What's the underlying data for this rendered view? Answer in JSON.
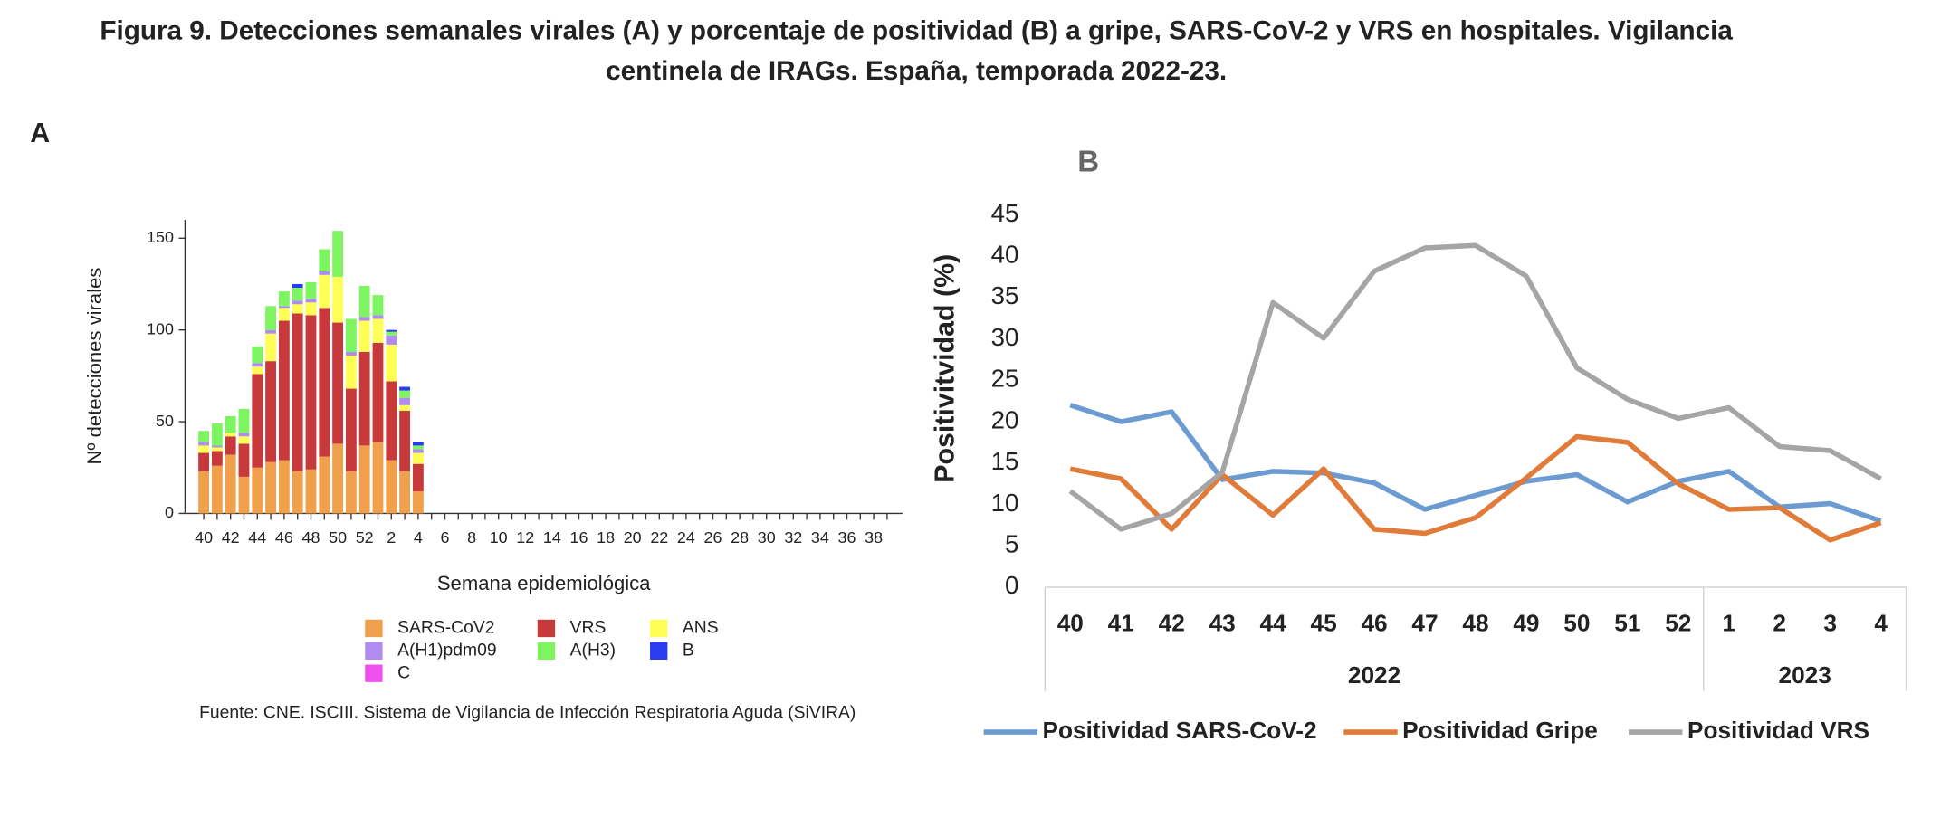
{
  "header": {
    "title_lines": [
      "Figura 9. Detecciones semanales virales (A) y porcentaje de positividad (B) a gripe, SARS-CoV-2 y VRS en hospitales. Vigilancia",
      "centinela de IRAGs.  España, temporada 2022-23."
    ]
  },
  "chart_data": [
    {
      "type": "stacked_bar",
      "panel": "A",
      "ylabel": "Nº detecciones virales",
      "xlabel": "Semana epidemiológica",
      "source": "Fuente: CNE. ISCIII. Sistema de Vigilancia de Infección Respiratoria Aguda (SiVIRA)",
      "categories": [
        "40",
        null,
        "42",
        null,
        "44",
        null,
        "46",
        null,
        "48",
        null,
        "50",
        null,
        "52",
        null,
        "2",
        null,
        "4",
        null,
        "6",
        null,
        "8",
        null,
        "10",
        null,
        "12",
        null,
        "14",
        null,
        "16",
        null,
        "18",
        null,
        "20",
        null,
        "22",
        null,
        "24",
        null,
        "26",
        null,
        "28",
        null,
        "30",
        null,
        "32",
        null,
        "34",
        null,
        "36",
        null,
        "38",
        null
      ],
      "ylim": [
        0,
        160
      ],
      "yticks": [
        0,
        50,
        100,
        150
      ],
      "series": [
        {
          "name": "SARS-CoV2",
          "color": "#f0a04b",
          "values": [
            23,
            26,
            32,
            20,
            25,
            28,
            29,
            23,
            24,
            31,
            38,
            23,
            37,
            39,
            29,
            23,
            12,
            null,
            null,
            null,
            null,
            null,
            null,
            null,
            null,
            null,
            null,
            null,
            null,
            null,
            null,
            null,
            null,
            null,
            null,
            null,
            null,
            null,
            null,
            null,
            null,
            null,
            null,
            null,
            null,
            null,
            null,
            null,
            null,
            null,
            null,
            null
          ]
        },
        {
          "name": "VRS",
          "color": "#c8393b",
          "values": [
            10,
            8,
            10,
            18,
            51,
            55,
            76,
            86,
            84,
            81,
            66,
            45,
            51,
            54,
            43,
            33,
            15,
            null,
            null,
            null,
            null,
            null,
            null,
            null,
            null,
            null,
            null,
            null,
            null,
            null,
            null,
            null,
            null,
            null,
            null,
            null,
            null,
            null,
            null,
            null,
            null,
            null,
            null,
            null,
            null,
            null,
            null,
            null,
            null,
            null,
            null,
            null
          ]
        },
        {
          "name": "ANS",
          "color": "#ffff55",
          "values": [
            4,
            2,
            2,
            4,
            4,
            15,
            7,
            5,
            7,
            18,
            25,
            18,
            17,
            13,
            20,
            3,
            6,
            null,
            null,
            null,
            null,
            null,
            null,
            null,
            null,
            null,
            null,
            null,
            null,
            null,
            null,
            null,
            null,
            null,
            null,
            null,
            null,
            null,
            null,
            null,
            null,
            null,
            null,
            null,
            null,
            null,
            null,
            null,
            null,
            null,
            null,
            null
          ]
        },
        {
          "name": "A(H1)pdm09",
          "color": "#b08cf0",
          "values": [
            2,
            1,
            0,
            2,
            2,
            2,
            1,
            2,
            2,
            2,
            0,
            2,
            2,
            2,
            5,
            4,
            2,
            null,
            null,
            null,
            null,
            null,
            null,
            null,
            null,
            null,
            null,
            null,
            null,
            null,
            null,
            null,
            null,
            null,
            null,
            null,
            null,
            null,
            null,
            null,
            null,
            null,
            null,
            null,
            null,
            null,
            null,
            null,
            null,
            null,
            null,
            null
          ]
        },
        {
          "name": "A(H3)",
          "color": "#7cf560",
          "values": [
            6,
            12,
            9,
            13,
            9,
            13,
            8,
            7,
            9,
            12,
            25,
            18,
            17,
            11,
            2,
            4,
            2,
            null,
            null,
            null,
            null,
            null,
            null,
            null,
            null,
            null,
            null,
            null,
            null,
            null,
            null,
            null,
            null,
            null,
            null,
            null,
            null,
            null,
            null,
            null,
            null,
            null,
            null,
            null,
            null,
            null,
            null,
            null,
            null,
            null,
            null,
            null
          ]
        },
        {
          "name": "B",
          "color": "#2b3cf0",
          "values": [
            0,
            0,
            0,
            0,
            0,
            0,
            0,
            2,
            0,
            0,
            0,
            0,
            0,
            0,
            1,
            2,
            2,
            null,
            null,
            null,
            null,
            null,
            null,
            null,
            null,
            null,
            null,
            null,
            null,
            null,
            null,
            null,
            null,
            null,
            null,
            null,
            null,
            null,
            null,
            null,
            null,
            null,
            null,
            null,
            null,
            null,
            null,
            null,
            null,
            null,
            null,
            null
          ]
        },
        {
          "name": "C",
          "color": "#f050f0",
          "values": [
            0,
            0,
            0,
            0,
            0,
            0,
            0,
            0,
            0,
            0,
            0,
            0,
            0,
            0,
            0,
            0,
            0,
            null,
            null,
            null,
            null,
            null,
            null,
            null,
            null,
            null,
            null,
            null,
            null,
            null,
            null,
            null,
            null,
            null,
            null,
            null,
            null,
            null,
            null,
            null,
            null,
            null,
            null,
            null,
            null,
            null,
            null,
            null,
            null,
            null,
            null,
            null
          ]
        }
      ]
    },
    {
      "type": "line",
      "panel": "B",
      "ylabel": "Positivitvidad (%)",
      "categories": [
        "40",
        "41",
        "42",
        "43",
        "44",
        "45",
        "46",
        "47",
        "48",
        "49",
        "50",
        "51",
        "52",
        "1",
        "2",
        "3",
        "4"
      ],
      "groups": [
        {
          "label": "2022",
          "span": 13
        },
        {
          "label": "2023",
          "span": 4
        }
      ],
      "ylim": [
        0,
        45
      ],
      "yticks": [
        0,
        5,
        10,
        15,
        20,
        25,
        30,
        35,
        40,
        45
      ],
      "series": [
        {
          "name": "Positividad SARS-CoV-2",
          "color": "#6b9bd1",
          "values": [
            22,
            20,
            21.2,
            13,
            14,
            13.8,
            12.6,
            9.4,
            11.1,
            12.8,
            13.6,
            10.3,
            12.8,
            14,
            9.7,
            10.1,
            8
          ]
        },
        {
          "name": "Positividad Gripe",
          "color": "#e07b39",
          "values": [
            14.3,
            13.1,
            7,
            13.6,
            8.7,
            14.3,
            7,
            6.5,
            8.4,
            13.2,
            18.2,
            17.5,
            12.5,
            9.4,
            9.6,
            5.7,
            7.8
          ]
        },
        {
          "name": "Positividad VRS",
          "color": "#a5a5a5",
          "values": [
            11.6,
            7,
            8.9,
            13.9,
            34.4,
            30.1,
            38.2,
            41,
            41.3,
            37.6,
            26.5,
            22.7,
            20.4,
            21.7,
            17,
            16.5,
            13.1
          ]
        }
      ]
    }
  ]
}
